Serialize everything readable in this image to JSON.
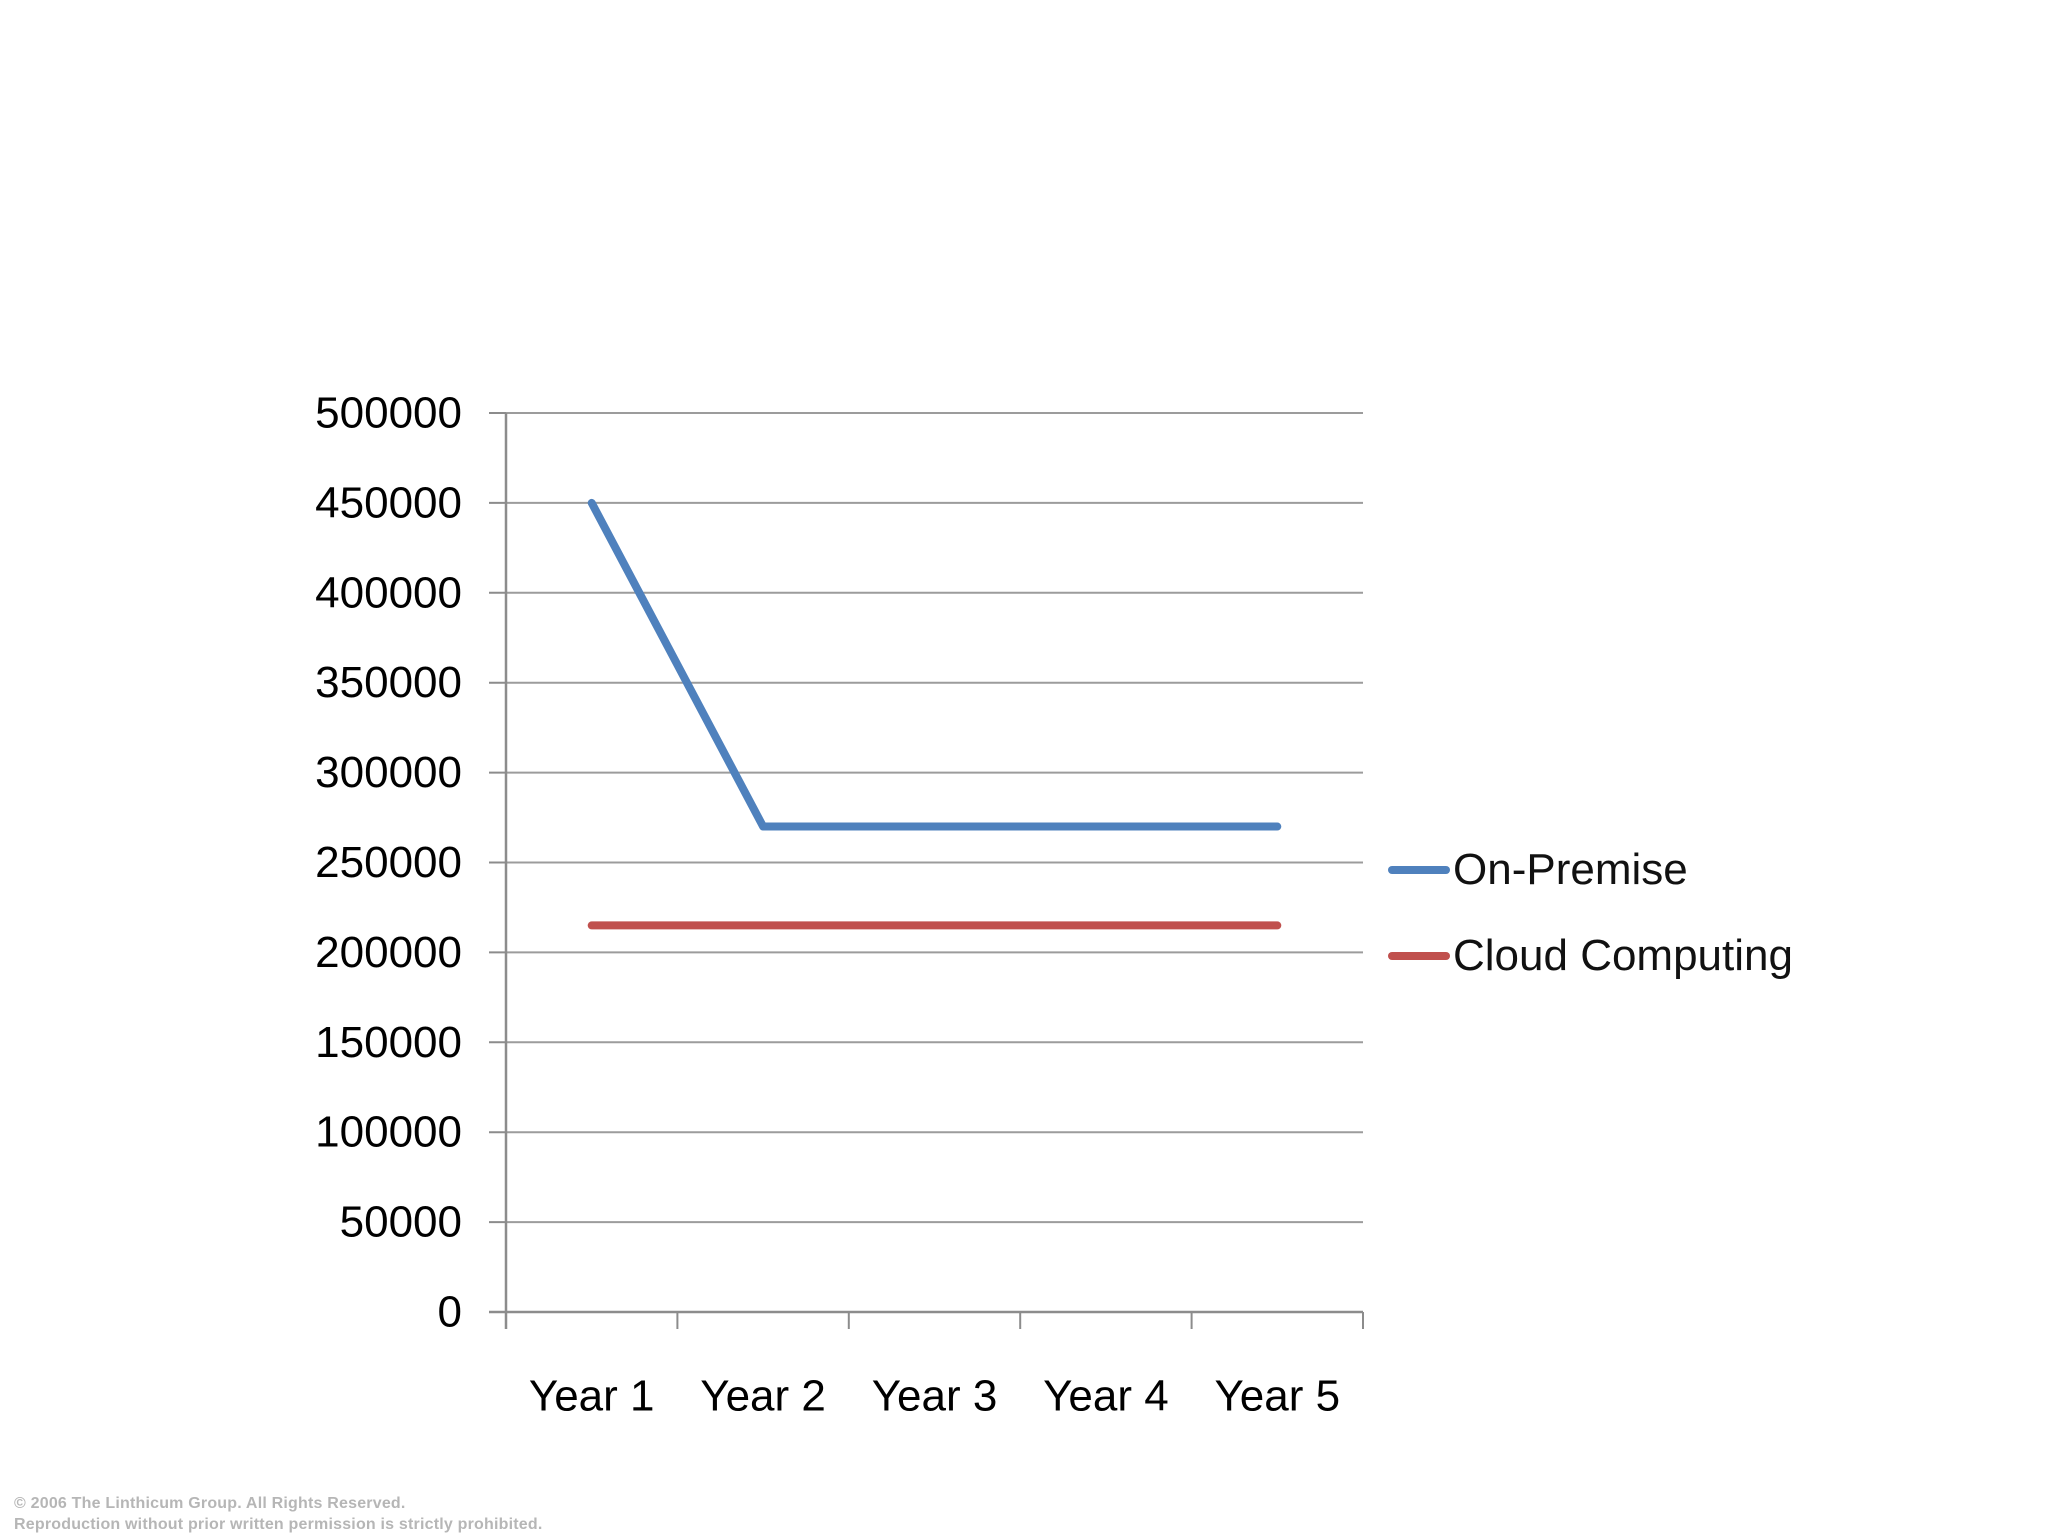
{
  "chart_data": {
    "type": "line",
    "title": "",
    "xlabel": "",
    "ylabel": "",
    "categories": [
      "Year 1",
      "Year 2",
      "Year 3",
      "Year 4",
      "Year 5"
    ],
    "series": [
      {
        "name": "On-Premise",
        "color": "#4F81BD",
        "values": [
          450000,
          270000,
          270000,
          270000,
          270000
        ]
      },
      {
        "name": "Cloud Computing",
        "color": "#C0504D",
        "values": [
          215000,
          215000,
          215000,
          215000,
          215000
        ]
      }
    ],
    "ylim": [
      0,
      500000
    ],
    "yticks": [
      0,
      50000,
      100000,
      150000,
      200000,
      250000,
      300000,
      350000,
      400000,
      450000,
      500000
    ],
    "grid": true,
    "grid_color": "#9c9c9c",
    "axis_color": "#8c8c8c",
    "tick_label_color": "#000000",
    "legend_position": "right"
  },
  "footer": {
    "line1": "© 2006 The Linthicum Group. All Rights Reserved.",
    "line2": "Reproduction without prior written permission is strictly prohibited."
  }
}
